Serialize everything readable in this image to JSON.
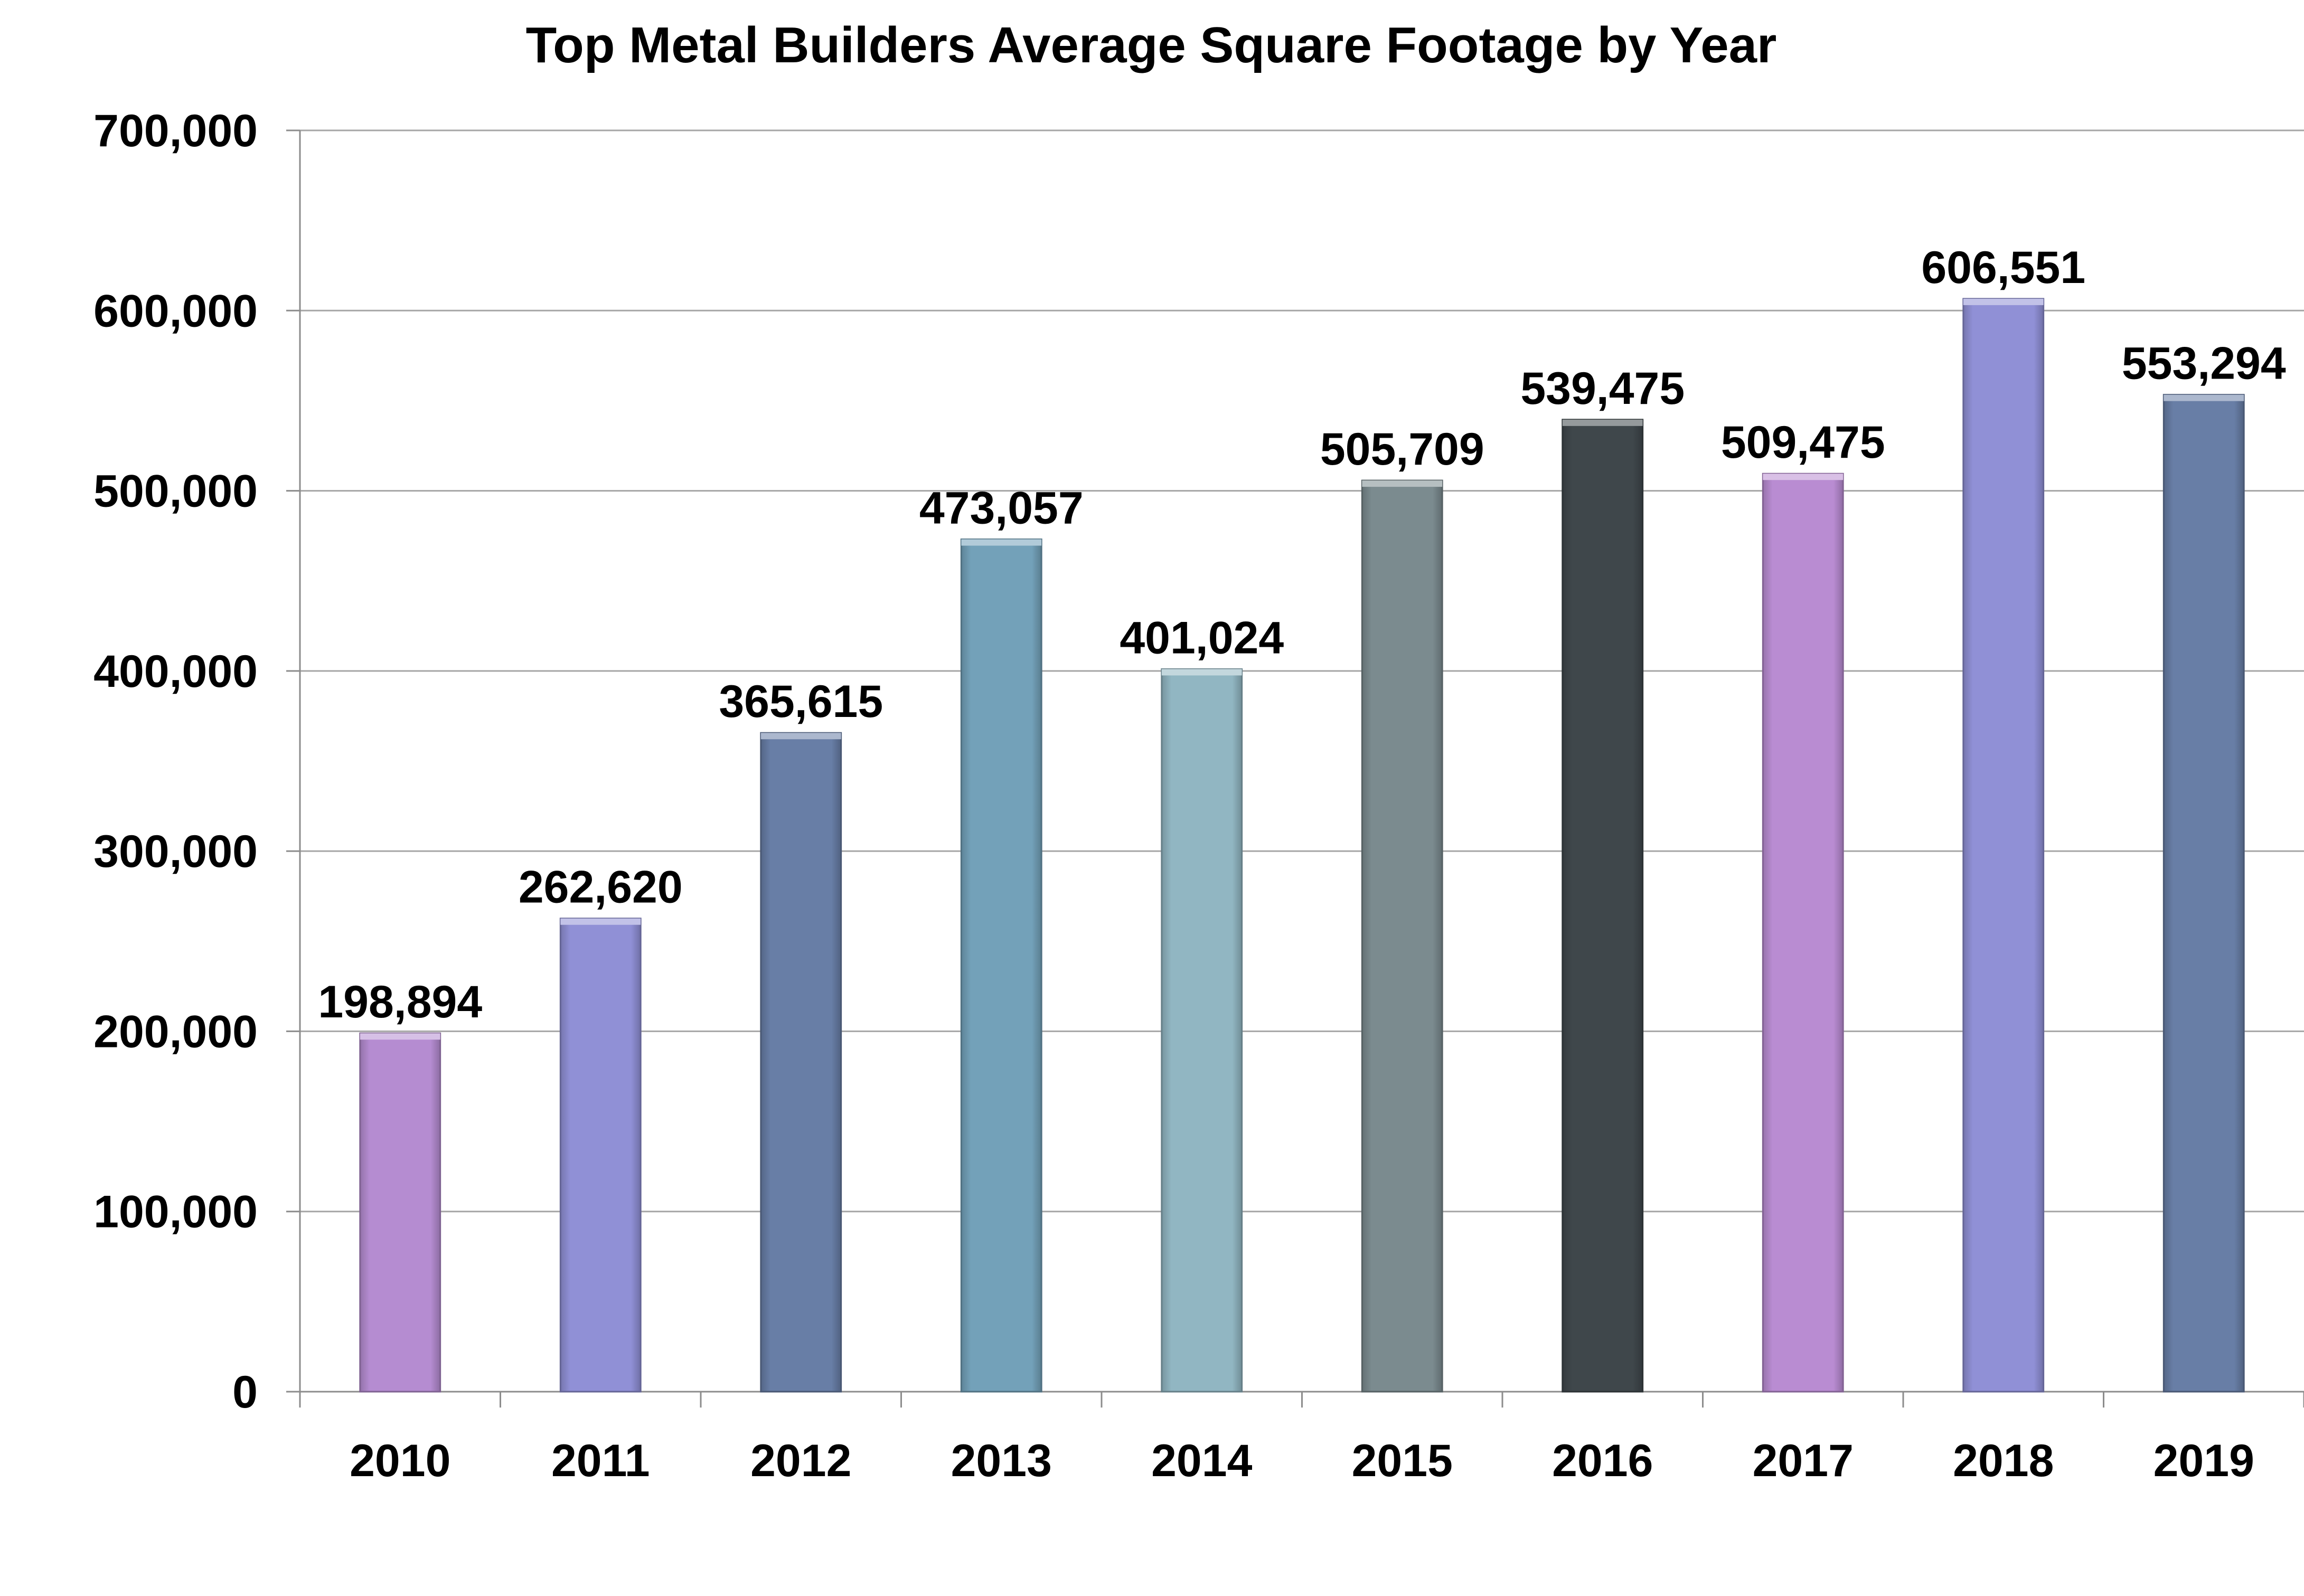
{
  "chart_data": {
    "type": "bar",
    "title": "Top Metal Builders Average Square Footage by Year",
    "xlabel": "",
    "ylabel": "",
    "categories": [
      "2010",
      "2011",
      "2012",
      "2013",
      "2014",
      "2015",
      "2016",
      "2017",
      "2018",
      "2019"
    ],
    "values": [
      198894,
      262620,
      365615,
      473057,
      401024,
      505709,
      539475,
      509475,
      606551,
      553294
    ],
    "value_labels": [
      "198,894",
      "262,620",
      "365,615",
      "473,057",
      "401,024",
      "505,709",
      "539,475",
      "509,475",
      "606,551",
      "553,294"
    ],
    "ylim": [
      0,
      700000
    ],
    "yticks": [
      0,
      100000,
      200000,
      300000,
      400000,
      500000,
      600000,
      700000
    ],
    "ytick_labels": [
      "0",
      "100,000",
      "200,000",
      "300,000",
      "400,000",
      "500,000",
      "600,000",
      "700,000"
    ],
    "grid": true,
    "legend": "none",
    "bar_colors": [
      "#b58cd1",
      "#9090d6",
      "#687ea6",
      "#73a1b9",
      "#91b6c2",
      "#7b8b8f",
      "#3f474b",
      "#b98cd2",
      "#9090d6",
      "#687ea6"
    ],
    "gridline_color": "#a6a6a6"
  }
}
